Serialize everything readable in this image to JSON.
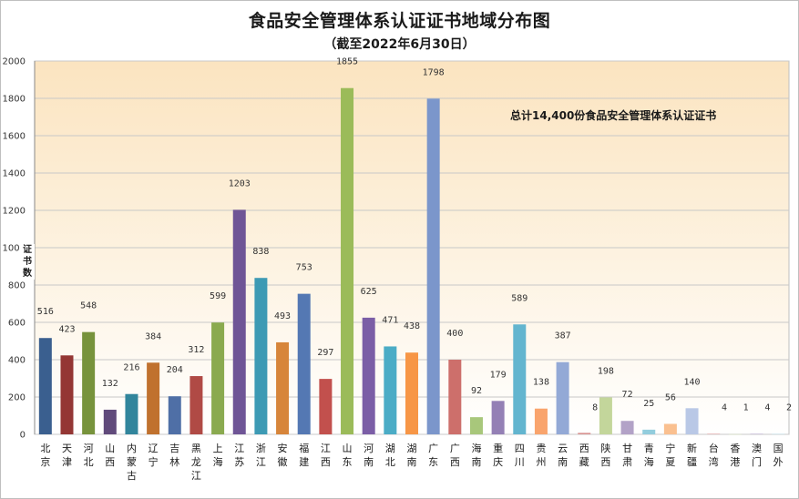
{
  "chart_data": {
    "type": "bar",
    "title": "食品安全管理体系认证证书地域分布图",
    "subtitle": "（截至2022年6月30日）",
    "ylabel": "证书数",
    "annotation": "总计14,400份食品安全管理体系认证证书",
    "ylim": [
      0,
      2000
    ],
    "yticks": [
      0,
      200,
      400,
      600,
      800,
      1000,
      1200,
      1400,
      1600,
      1800,
      2000
    ],
    "categories": [
      "北京",
      "天津",
      "河北",
      "山西",
      "内蒙古",
      "辽宁",
      "吉林",
      "黑龙江",
      "上海",
      "江苏",
      "浙江",
      "安徽",
      "福建",
      "江西",
      "山东",
      "河南",
      "湖北",
      "湖南",
      "广东",
      "广西",
      "海南",
      "重庆",
      "四川",
      "贵州",
      "云南",
      "西藏",
      "陕西",
      "甘肃",
      "青海",
      "宁夏",
      "新疆",
      "台湾",
      "香港",
      "澳门",
      "国外"
    ],
    "values": [
      516,
      423,
      548,
      132,
      216,
      384,
      204,
      312,
      599,
      1203,
      838,
      493,
      753,
      297,
      1855,
      625,
      471,
      438,
      1798,
      400,
      92,
      179,
      589,
      138,
      387,
      8,
      198,
      72,
      25,
      56,
      140,
      4,
      1,
      4,
      2
    ],
    "colors": [
      "#3a5f8f",
      "#943634",
      "#77933c",
      "#604a7b",
      "#31859c",
      "#c0712e",
      "#4f6fa6",
      "#b04a45",
      "#8aaa4f",
      "#6f5596",
      "#3d9ab4",
      "#d7853a",
      "#5478b3",
      "#c2504d",
      "#9bbb59",
      "#7b5ea6",
      "#4bacc6",
      "#f79646",
      "#7b96cb",
      "#cd6f6b",
      "#a8c77b",
      "#9480b5",
      "#63b5cf",
      "#f9a46d",
      "#93a9d6",
      "#d99391",
      "#c3d69b",
      "#b2a2c7",
      "#93cddd",
      "#fac090",
      "#b9c8e6",
      "#e6b8b7",
      "#d7e4bc",
      "#ccc1da",
      "#b6dde8"
    ]
  }
}
